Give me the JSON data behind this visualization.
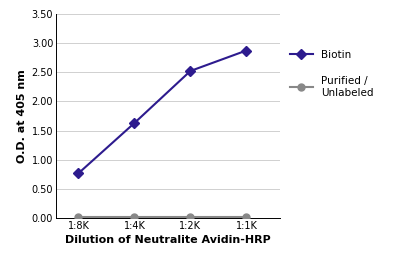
{
  "x_labels": [
    "1:8K",
    "1:4K",
    "1:2K",
    "1:1K"
  ],
  "x_positions": [
    0,
    1,
    2,
    3
  ],
  "biotin_values": [
    0.77,
    1.63,
    2.52,
    2.87
  ],
  "purified_values": [
    0.02,
    0.02,
    0.02,
    0.02
  ],
  "biotin_color": "#2d1b8e",
  "purified_color": "#888888",
  "biotin_label": "Biotin",
  "purified_label": "Purified /\nUnlabeled",
  "xlabel": "Dilution of Neutralite Avidin-HRP",
  "ylabel": "O.D. at 405 nm",
  "ylim": [
    0.0,
    3.5
  ],
  "yticks": [
    0.0,
    0.5,
    1.0,
    1.5,
    2.0,
    2.5,
    3.0,
    3.5
  ],
  "ytick_labels": [
    "0.00",
    "0.50",
    "1.00",
    "1.50",
    "2.00",
    "2.50",
    "3.00",
    "3.50"
  ],
  "background_color": "#ffffff",
  "grid_color": "#d0d0d0",
  "linewidth": 1.5,
  "markersize": 5,
  "tick_fontsize": 7,
  "label_fontsize": 8,
  "legend_fontsize": 7.5
}
